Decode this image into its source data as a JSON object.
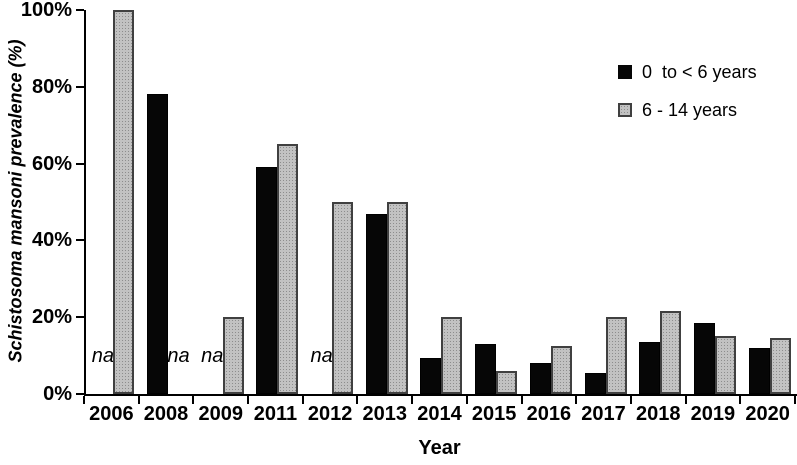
{
  "chart_data": {
    "type": "bar",
    "title": "",
    "xlabel": "Year",
    "ylabel": "Schistosoma mansoni prevalence (%)",
    "ylim": [
      0,
      100
    ],
    "yticks": [
      0,
      20,
      40,
      60,
      80,
      100
    ],
    "ytick_labels": [
      "0%",
      "20%",
      "40%",
      "60%",
      "80%",
      "100%"
    ],
    "categories": [
      "2006",
      "2008",
      "2009",
      "2011",
      "2012",
      "2013",
      "2014",
      "2015",
      "2016",
      "2017",
      "2018",
      "2019",
      "2020"
    ],
    "series": [
      {
        "name": "0  to < 6 years",
        "color": "#060606",
        "values": [
          null,
          78,
          null,
          59,
          null,
          47,
          9.5,
          13,
          8,
          5.5,
          13.5,
          18.5,
          12
        ]
      },
      {
        "name": "6 - 14 years",
        "color": "#c2c2c2",
        "border_color": "#404040",
        "values": [
          100,
          null,
          20,
          65,
          50,
          50,
          20,
          6,
          12.5,
          20,
          21.5,
          15,
          14.5
        ]
      }
    ],
    "missing_label": "na",
    "legend_position": "top-right",
    "grid": false
  }
}
